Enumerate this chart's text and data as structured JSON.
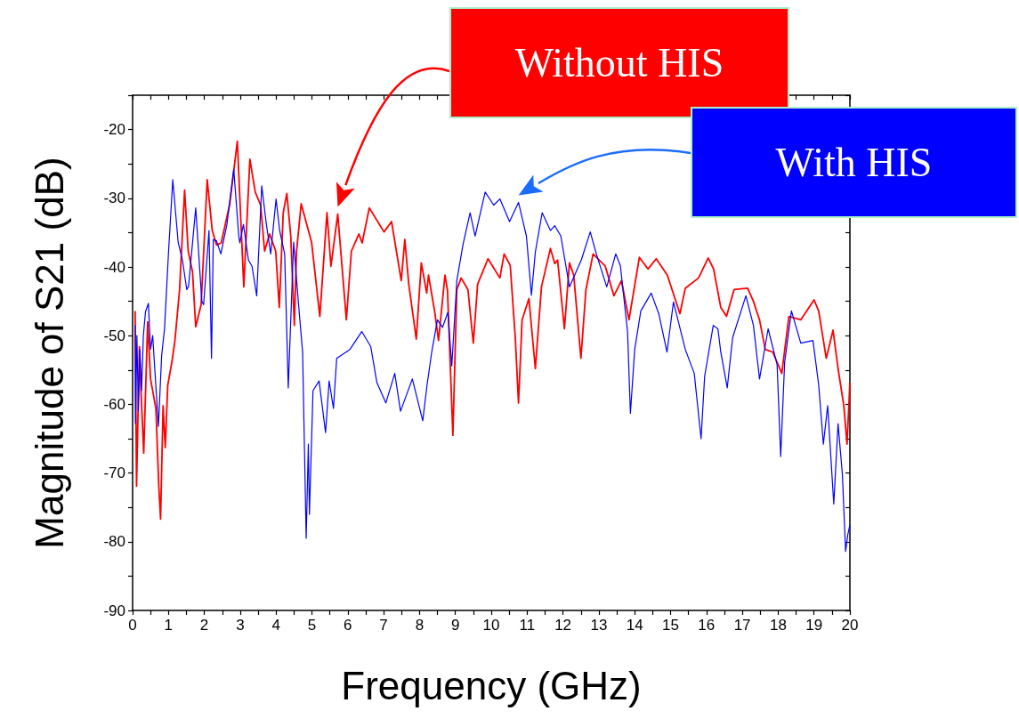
{
  "chart_data": {
    "type": "line",
    "xlabel": "Frequency (GHz)",
    "ylabel": "Magnitude of S21 (dB)",
    "xlim": [
      0,
      20
    ],
    "ylim": [
      -90,
      -15
    ],
    "xticks": [
      0,
      {
        "value": 0.5,
        "label": null
      },
      1,
      {
        "value": 1.5,
        "label": null
      },
      2,
      {
        "value": 2.5,
        "label": null
      },
      3,
      {
        "value": 3.5,
        "label": null
      },
      4,
      {
        "value": 4.5,
        "label": null
      },
      5,
      {
        "value": 5.5,
        "label": null
      },
      6,
      {
        "value": 6.5,
        "label": null
      },
      7,
      {
        "value": 7.5,
        "label": null
      },
      8,
      {
        "value": 8.5,
        "label": null
      },
      9,
      {
        "value": 9.5,
        "label": null
      },
      10,
      {
        "value": 10.5,
        "label": null
      },
      11,
      {
        "value": 11.5,
        "label": null
      },
      12,
      {
        "value": 12.5,
        "label": null
      },
      13,
      {
        "value": 13.5,
        "label": null
      },
      14,
      {
        "value": 14.5,
        "label": null
      },
      15,
      {
        "value": 15.5,
        "label": null
      },
      16,
      {
        "value": 16.5,
        "label": null
      },
      17,
      {
        "value": 17.5,
        "label": null
      },
      18,
      {
        "value": 18.5,
        "label": null
      },
      19,
      {
        "value": 19.5,
        "label": null
      },
      20
    ],
    "yticks": [
      -90,
      {
        "value": -85,
        "label": null
      },
      -80,
      {
        "value": -75,
        "label": null
      },
      -70,
      {
        "value": -65,
        "label": null
      },
      -60,
      {
        "value": -55,
        "label": null
      },
      -50,
      {
        "value": -45,
        "label": null
      },
      -40,
      {
        "value": -35,
        "label": null
      },
      -30,
      {
        "value": -25,
        "label": null
      },
      -20,
      {
        "value": -15,
        "label": null
      }
    ],
    "grid": false,
    "series": [
      {
        "name": "Without HIS",
        "color": "#ff0000",
        "x": [
          0.07,
          0.11,
          0.19,
          0.23,
          0.31,
          0.42,
          0.5,
          0.65,
          0.73,
          0.78,
          0.85,
          0.91,
          0.98,
          1.1,
          1.18,
          1.31,
          1.45,
          1.55,
          1.67,
          1.76,
          1.91,
          2.08,
          2.22,
          2.34,
          2.47,
          2.71,
          2.92,
          3.1,
          3.27,
          3.42,
          3.57,
          3.68,
          3.82,
          3.99,
          4.09,
          4.2,
          4.3,
          4.41,
          4.51,
          4.57,
          4.7,
          4.99,
          5.22,
          5.42,
          5.53,
          5.72,
          5.96,
          6.1,
          6.31,
          6.4,
          6.6,
          7.01,
          7.22,
          7.49,
          7.59,
          7.7,
          7.91,
          8.05,
          8.2,
          8.25,
          8.42,
          8.53,
          8.71,
          8.78,
          8.93,
          9.04,
          9.16,
          9.35,
          9.5,
          9.62,
          9.91,
          10.24,
          10.36,
          10.53,
          10.67,
          10.76,
          10.86,
          11.05,
          11.15,
          11.23,
          11.4,
          11.65,
          11.77,
          11.85,
          12.04,
          12.18,
          12.3,
          12.5,
          12.64,
          12.84,
          13.18,
          13.42,
          13.63,
          13.84,
          14.13,
          14.37,
          14.6,
          14.91,
          15.26,
          15.41,
          15.78,
          16.05,
          16.2,
          16.4,
          16.56,
          16.77,
          17.15,
          17.31,
          17.48,
          17.64,
          17.85,
          18.1,
          18.3,
          18.63,
          19.0,
          19.13,
          19.34,
          19.53,
          19.67,
          19.83,
          19.92,
          20.0
        ],
        "values": [
          -46.4,
          -71.9,
          -51.6,
          -57.6,
          -67.1,
          -48,
          -56.3,
          -60.6,
          -71.9,
          -76.7,
          -60.2,
          -66.3,
          -57.2,
          -53.7,
          -50.7,
          -43.3,
          -28.8,
          -37.7,
          -40.7,
          -48.7,
          -45.5,
          -27.3,
          -34.7,
          -36.8,
          -36.5,
          -30.8,
          -21.7,
          -42.9,
          -24.3,
          -29.1,
          -31,
          -37.7,
          -35.2,
          -37.7,
          -45.9,
          -32.1,
          -29.3,
          -35.5,
          -48.5,
          -37.8,
          -30.8,
          -36.4,
          -47.2,
          -32.1,
          -39.9,
          -32.3,
          -47.7,
          -37.7,
          -35.2,
          -36.5,
          -31.4,
          -34.9,
          -33.4,
          -42,
          -36,
          -42.5,
          -50.5,
          -39.4,
          -43.8,
          -41.2,
          -46.4,
          -50.7,
          -41.2,
          -43.4,
          -64.5,
          -43.3,
          -41.6,
          -43.3,
          -51.1,
          -42.5,
          -38.8,
          -41.6,
          -38.1,
          -39.8,
          -50.3,
          -59.8,
          -47.7,
          -44.6,
          -50.3,
          -54.8,
          -42.9,
          -37.3,
          -39.5,
          -39,
          -49,
          -39.4,
          -41.2,
          -53.3,
          -43.3,
          -38.1,
          -39.9,
          -44.2,
          -42,
          -47.7,
          -38.6,
          -40.3,
          -38.8,
          -41.2,
          -46.8,
          -43.1,
          -41.6,
          -38.7,
          -40.3,
          -45.9,
          -47.2,
          -43.3,
          -43.1,
          -45,
          -47.7,
          -52,
          -52.4,
          -55.5,
          -47.2,
          -47.7,
          -44.8,
          -46.4,
          -53.3,
          -49.2,
          -54.8,
          -60.2,
          -65.8,
          -56.8
        ]
      },
      {
        "name": "With HIS",
        "color": "#0000ff",
        "x": [
          0.07,
          0.08,
          0.12,
          0.16,
          0.2,
          0.25,
          0.3,
          0.36,
          0.44,
          0.5,
          0.56,
          0.62,
          0.72,
          0.81,
          0.89,
          1.0,
          1.12,
          1.27,
          1.39,
          1.51,
          1.56,
          1.76,
          1.93,
          1.98,
          2.13,
          2.2,
          2.25,
          2.34,
          2.46,
          2.63,
          2.82,
          2.96,
          2.99,
          3.09,
          3.23,
          3.33,
          3.46,
          3.6,
          3.73,
          3.85,
          4.0,
          4.1,
          4.24,
          4.34,
          4.49,
          4.62,
          4.74,
          4.84,
          4.9,
          4.93,
          5.03,
          5.2,
          5.38,
          5.48,
          5.6,
          5.69,
          6.06,
          6.39,
          6.64,
          6.81,
          7.06,
          7.31,
          7.47,
          7.8,
          8.09,
          8.21,
          8.34,
          8.5,
          8.64,
          8.79,
          8.9,
          9.04,
          9.21,
          9.41,
          9.55,
          9.83,
          10.07,
          10.24,
          10.51,
          10.76,
          10.98,
          11.12,
          11.23,
          11.42,
          11.65,
          11.77,
          11.94,
          12.18,
          12.51,
          12.76,
          12.93,
          13.22,
          13.47,
          13.6,
          13.8,
          13.88,
          14.0,
          14.17,
          14.46,
          14.67,
          14.9,
          15.08,
          15.41,
          15.66,
          15.85,
          15.95,
          16.19,
          16.32,
          16.4,
          16.58,
          16.73,
          17.1,
          17.31,
          17.48,
          17.72,
          17.97,
          18.07,
          18.18,
          18.37,
          18.63,
          18.97,
          19.13,
          19.26,
          19.38,
          19.55,
          19.67,
          19.79,
          19.88,
          19.94,
          20
        ],
        "values": [
          -48.5,
          -62.8,
          -50,
          -61,
          -52,
          -58,
          -50,
          -46.5,
          -45.3,
          -52,
          -50,
          -55,
          -63.2,
          -52.9,
          -49,
          -38,
          -27.3,
          -36.4,
          -39,
          -43.3,
          -42.8,
          -31.4,
          -45,
          -45.5,
          -34.7,
          -53.3,
          -36,
          -36.2,
          -38.1,
          -33.8,
          -25.8,
          -35.5,
          -36.5,
          -33.8,
          -39,
          -39.9,
          -44.2,
          -28.2,
          -33.8,
          -38.1,
          -30.1,
          -34.7,
          -38.1,
          -57.6,
          -36.4,
          -45,
          -52.4,
          -79.5,
          -65.8,
          -76,
          -58,
          -56.6,
          -64.1,
          -56.6,
          -60.6,
          -53.3,
          -52,
          -49.4,
          -51.6,
          -56.8,
          -59.8,
          -55.5,
          -61,
          -56.3,
          -62.4,
          -57.2,
          -52.4,
          -47.7,
          -48.8,
          -46.6,
          -54.4,
          -42,
          -36.8,
          -32.1,
          -35.5,
          -29.1,
          -31,
          -30.1,
          -33.4,
          -30.6,
          -35.5,
          -44.1,
          -37.8,
          -32.1,
          -34.7,
          -34,
          -35.5,
          -42.9,
          -39,
          -34.9,
          -38.1,
          -42.9,
          -38.1,
          -39.8,
          -49.4,
          -61.3,
          -52,
          -46.4,
          -43.8,
          -46.8,
          -52.4,
          -45.1,
          -52,
          -55.5,
          -65,
          -55.9,
          -48.5,
          -49,
          -52.4,
          -57.6,
          -50.3,
          -44.2,
          -48.5,
          -56.3,
          -49,
          -54.2,
          -67.6,
          -53.9,
          -46.4,
          -51.1,
          -50.7,
          -57.2,
          -65.8,
          -60.2,
          -74.5,
          -62.8,
          -70.2,
          -81.4,
          -79,
          -77.5
        ]
      }
    ]
  }
}
